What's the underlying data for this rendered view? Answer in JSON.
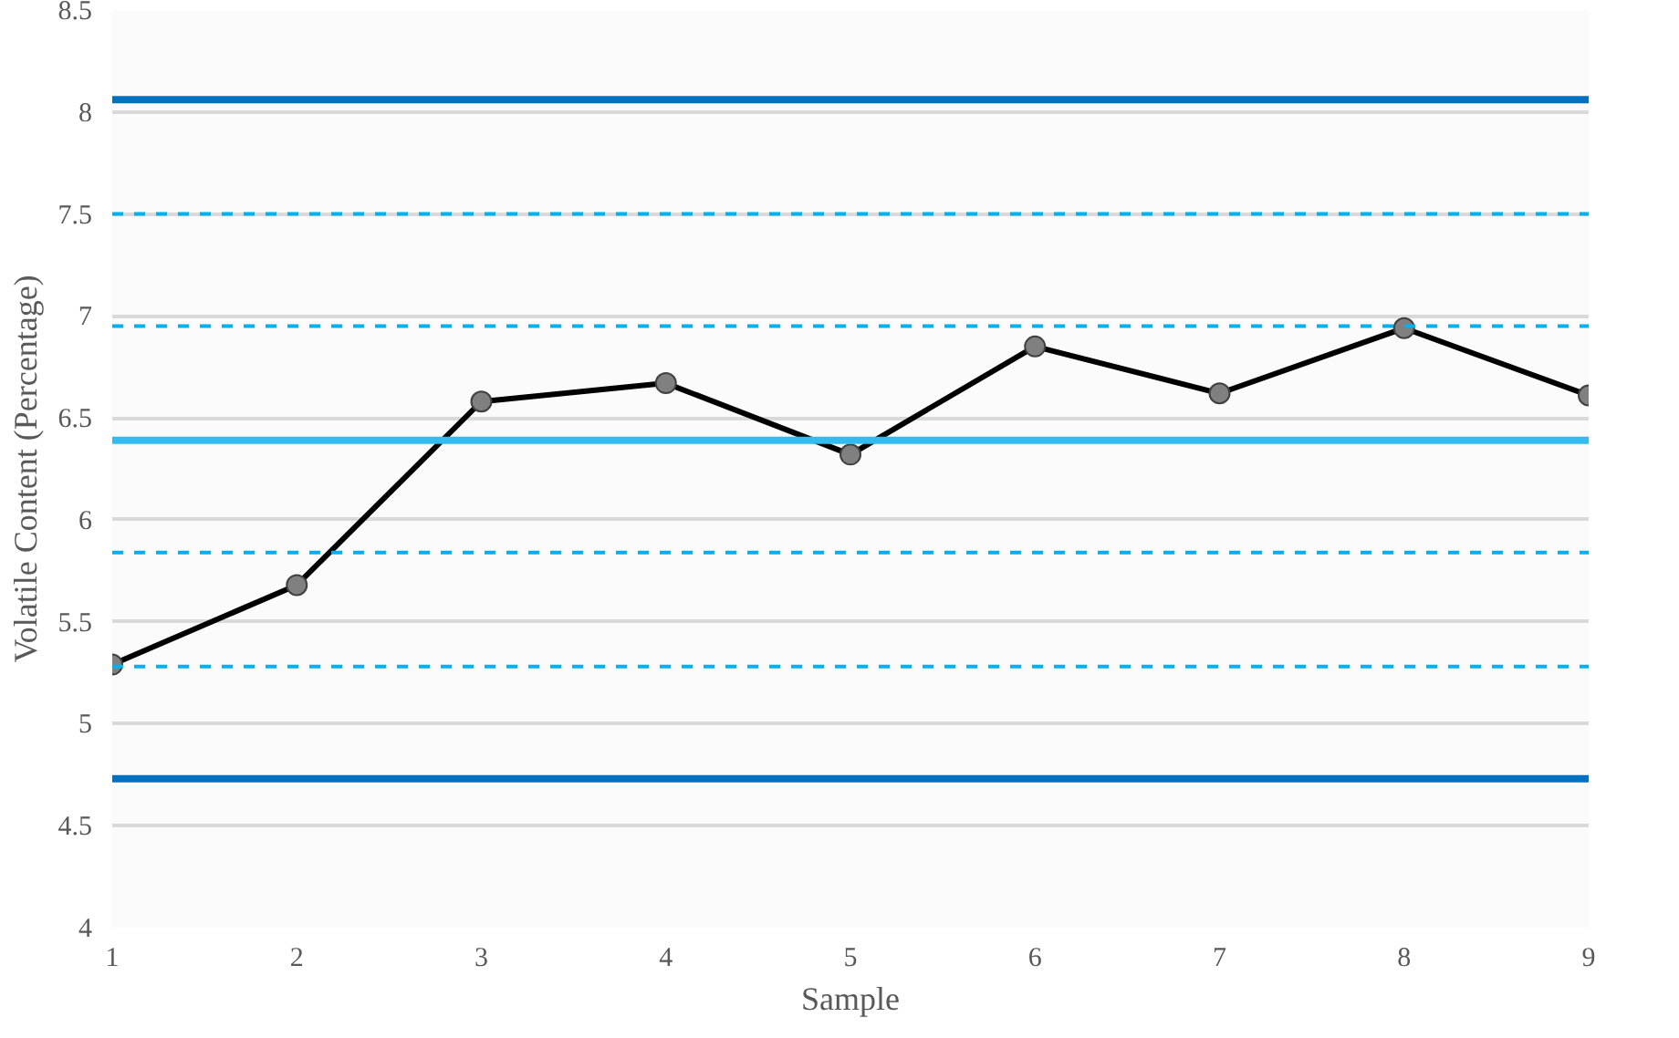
{
  "chart_data": {
    "type": "line",
    "xlabel": "Sample",
    "ylabel": "Volatile Content (Percentage)",
    "x": [
      1,
      2,
      3,
      4,
      5,
      6,
      7,
      8,
      9
    ],
    "series": [
      {
        "color": "#000000",
        "values": [
          5.29,
          5.68,
          6.58,
          6.67,
          6.32,
          6.85,
          6.62,
          6.94,
          6.61
        ]
      }
    ],
    "marker": "circle",
    "grid": "y",
    "xlim": [
      1,
      9
    ],
    "xticks": [
      1,
      2,
      3,
      4,
      5,
      6,
      7,
      8,
      9
    ],
    "ylim": [
      4,
      8.5
    ],
    "yticks": [
      4,
      4.5,
      5,
      5.5,
      6,
      6.5,
      7,
      7.5,
      8,
      8.5
    ],
    "ref_lines": [
      {
        "axis": "y",
        "value": 8.06,
        "color": "#0070c0",
        "line_style": "solid"
      },
      {
        "axis": "y",
        "value": 7.5,
        "color": "#00b0f0",
        "line_style": "dashed"
      },
      {
        "axis": "y",
        "value": 6.95,
        "color": "#00b0f0",
        "line_style": "dashed"
      },
      {
        "axis": "y",
        "value": 6.39,
        "color": "#33bbee",
        "line_style": "solid"
      },
      {
        "axis": "y",
        "value": 5.84,
        "color": "#00b0f0",
        "line_style": "dashed"
      },
      {
        "axis": "y",
        "value": 5.28,
        "color": "#00b0f0",
        "line_style": "dashed"
      },
      {
        "axis": "y",
        "value": 4.73,
        "color": "#0070c0",
        "line_style": "solid"
      }
    ]
  }
}
